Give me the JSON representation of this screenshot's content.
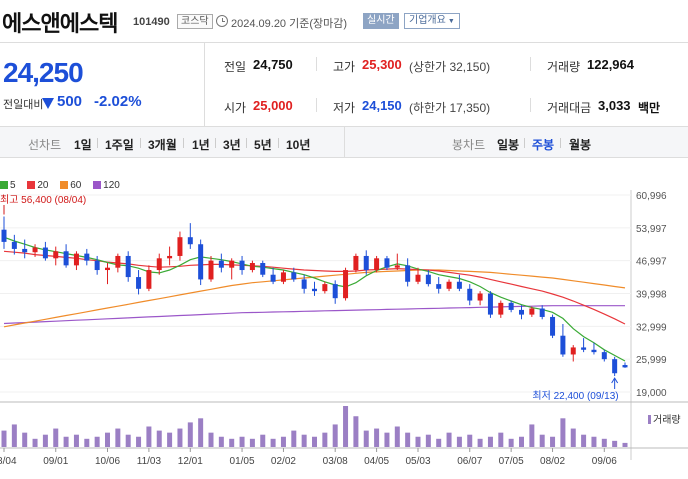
{
  "header": {
    "name": "에스앤에스텍",
    "code": "101490",
    "market": "코스닥",
    "ref_time": "2024.09.20 기준(장마감)",
    "realtime_label": "실시간",
    "company_info_label": "기업개요"
  },
  "quote": {
    "current_price": "24,250",
    "change_label": "전일대비",
    "change_value": "500",
    "change_pct": "-2.02%",
    "prev_close_label": "전일",
    "prev_close": "24,750",
    "high_label": "고가",
    "high": "25,300",
    "upper_limit": "(상한가 32,150)",
    "volume_label": "거래량",
    "volume": "122,964",
    "open_label": "시가",
    "open": "25,000",
    "low_label": "저가",
    "low": "24,150",
    "lower_limit": "(하한가 17,350)",
    "amount_label": "거래대금",
    "amount": "3,033",
    "amount_unit": "백만"
  },
  "period_bar": {
    "line_title": "선차트",
    "line_periods": [
      "1일",
      "1주일",
      "3개월",
      "1년",
      "3년",
      "5년",
      "10년"
    ],
    "candle_title": "봉차트",
    "candle_periods": [
      "일봉",
      "주봉",
      "월봉"
    ],
    "active_candle": "주봉"
  },
  "legend": [
    {
      "label": "5",
      "color": "#3aaa35"
    },
    {
      "label": "20",
      "color": "#e8363b"
    },
    {
      "label": "60",
      "color": "#f08c2a"
    },
    {
      "label": "120",
      "color": "#9b57c9"
    }
  ],
  "volume_label": "거래량",
  "colors": {
    "up": "#e02020",
    "down": "#1d4fd8",
    "volume": "#9b7fc4"
  },
  "chart_data": {
    "type": "candlestick",
    "y_ticks": [
      "60,996",
      "53,997",
      "46,997",
      "39,998",
      "32,999",
      "25,999",
      "19,000"
    ],
    "ylim": [
      19000,
      60996
    ],
    "x_labels": [
      "08/04",
      "09/01",
      "10/06",
      "11/03",
      "12/01",
      "01/05",
      "02/02",
      "03/08",
      "04/05",
      "05/03",
      "06/07",
      "07/05",
      "08/02",
      "09/06"
    ],
    "x_label_index": [
      0,
      5,
      10,
      14,
      18,
      23,
      27,
      32,
      36,
      40,
      45,
      49,
      53,
      58
    ],
    "max_annotation": {
      "text": "최고 56,400 (08/04)",
      "index": 0,
      "value": 56400
    },
    "min_annotation": {
      "text": "최저 22,400 (09/13)",
      "index": 59,
      "value": 22400
    },
    "candles": [
      [
        53600,
        56400,
        49500,
        51000
      ],
      [
        51000,
        52500,
        48300,
        49500
      ],
      [
        49500,
        51500,
        47500,
        48800
      ],
      [
        48800,
        50500,
        47800,
        49800
      ],
      [
        49800,
        51000,
        47000,
        47500
      ],
      [
        47500,
        50000,
        46000,
        49000
      ],
      [
        49000,
        50500,
        45500,
        46000
      ],
      [
        46000,
        49000,
        45000,
        48500
      ],
      [
        48500,
        49500,
        46000,
        47000
      ],
      [
        47000,
        48000,
        44000,
        45000
      ],
      [
        45000,
        46500,
        42000,
        45500
      ],
      [
        45500,
        48500,
        44500,
        48000
      ],
      [
        48000,
        49000,
        42500,
        43500
      ],
      [
        43500,
        45000,
        39800,
        41000
      ],
      [
        41000,
        46000,
        40500,
        45000
      ],
      [
        45000,
        48500,
        44000,
        47500
      ],
      [
        47500,
        50000,
        46000,
        48000
      ],
      [
        48000,
        53200,
        47000,
        52000
      ],
      [
        52000,
        55000,
        49500,
        50500
      ],
      [
        50500,
        51500,
        41800,
        43000
      ],
      [
        43000,
        48000,
        42500,
        47000
      ],
      [
        47000,
        48500,
        44500,
        45500
      ],
      [
        45500,
        47500,
        43000,
        47000
      ],
      [
        47000,
        48000,
        44000,
        45000
      ],
      [
        45000,
        47000,
        44500,
        46500
      ],
      [
        46500,
        47000,
        43500,
        44000
      ],
      [
        44000,
        45500,
        42000,
        42500
      ],
      [
        42500,
        45000,
        42000,
        44500
      ],
      [
        44500,
        45500,
        42500,
        43000
      ],
      [
        43000,
        44000,
        40000,
        41000
      ],
      [
        41000,
        42500,
        39500,
        40500
      ],
      [
        40500,
        42500,
        40000,
        42000
      ],
      [
        42000,
        42800,
        37800,
        39000
      ],
      [
        39000,
        45500,
        38500,
        45000
      ],
      [
        45000,
        48500,
        44500,
        48000
      ],
      [
        48000,
        49200,
        44000,
        45000
      ],
      [
        45000,
        48000,
        44500,
        47500
      ],
      [
        47500,
        48000,
        45000,
        45500
      ],
      [
        45500,
        48500,
        45000,
        46000
      ],
      [
        46000,
        47500,
        41500,
        42500
      ],
      [
        42500,
        45500,
        42000,
        44000
      ],
      [
        44000,
        45000,
        41500,
        42000
      ],
      [
        42000,
        43500,
        40000,
        41000
      ],
      [
        41000,
        43000,
        40500,
        42500
      ],
      [
        42500,
        44000,
        40500,
        41000
      ],
      [
        41000,
        42000,
        37500,
        38500
      ],
      [
        38500,
        40500,
        37500,
        40000
      ],
      [
        40000,
        40500,
        34800,
        35500
      ],
      [
        35500,
        38500,
        34800,
        38000
      ],
      [
        38000,
        38500,
        36000,
        36500
      ],
      [
        36500,
        37500,
        34500,
        35500
      ],
      [
        35500,
        37200,
        35000,
        36800
      ],
      [
        36800,
        37500,
        34500,
        35000
      ],
      [
        35000,
        35500,
        30500,
        31000
      ],
      [
        31000,
        33500,
        26500,
        27000
      ],
      [
        27000,
        29000,
        25500,
        28500
      ],
      [
        28500,
        30500,
        27500,
        28000
      ],
      [
        28000,
        29500,
        27000,
        27500
      ],
      [
        27500,
        28000,
        25500,
        26000
      ],
      [
        26000,
        26500,
        22400,
        23000
      ],
      [
        24750,
        25300,
        24150,
        24250
      ]
    ],
    "ma5": [
      52000,
      51200,
      50500,
      49800,
      49300,
      48900,
      48500,
      48100,
      47700,
      47200,
      46600,
      46100,
      45900,
      45400,
      44600,
      44400,
      45000,
      46000,
      47200,
      47800,
      47500,
      47200,
      46800,
      46300,
      45800,
      45600,
      45300,
      45000,
      44500,
      44000,
      43300,
      42500,
      41800,
      41400,
      42300,
      43800,
      44900,
      45700,
      46300,
      45900,
      45200,
      44700,
      44000,
      43600,
      43200,
      42500,
      41500,
      40200,
      39200,
      38400,
      37600,
      37000,
      36600,
      36000,
      34700,
      32500,
      30800,
      29500,
      28000,
      26800,
      25600
    ],
    "ma20": [
      49000,
      48800,
      48600,
      48300,
      48100,
      47900,
      47700,
      47500,
      47200,
      47000,
      46700,
      46500,
      46300,
      46000,
      45800,
      45600,
      45700,
      45800,
      46000,
      46100,
      46200,
      46200,
      46100,
      46000,
      45900,
      45800,
      45600,
      45400,
      45200,
      45000,
      44900,
      44800,
      44700,
      44700,
      44800,
      45000,
      45100,
      45200,
      45300,
      45200,
      45100,
      45000,
      44800,
      44500,
      44200,
      43900,
      43500,
      43000,
      42500,
      42000,
      41500,
      41000,
      40500,
      39900,
      39200,
      38400,
      37500,
      36600,
      35600,
      34600,
      33500
    ],
    "ma60": [
      32900,
      33300,
      33700,
      34100,
      34500,
      34900,
      35300,
      35700,
      36100,
      36500,
      36900,
      37300,
      37700,
      38100,
      38500,
      38900,
      39300,
      39700,
      40100,
      40500,
      40900,
      41300,
      41700,
      42000,
      42300,
      42500,
      42700,
      42900,
      43100,
      43300,
      43500,
      43700,
      43900,
      44100,
      44300,
      44500,
      44600,
      44700,
      44800,
      44900,
      45000,
      45000,
      45000,
      44900,
      44800,
      44700,
      44600,
      44500,
      44300,
      44100,
      43900,
      43700,
      43500,
      43300,
      43000,
      42700,
      42400,
      42100,
      41800,
      41500,
      41200
    ],
    "ma120": [
      33600,
      33700,
      33800,
      33900,
      34000,
      34100,
      34200,
      34300,
      34400,
      34500,
      34600,
      34700,
      34800,
      34900,
      35000,
      35100,
      35200,
      35300,
      35400,
      35500,
      35600,
      35700,
      35800,
      35900,
      35950,
      36000,
      36050,
      36100,
      36150,
      36200,
      36250,
      36300,
      36350,
      36400,
      36450,
      36500,
      36550,
      36600,
      36650,
      36700,
      36750,
      36800,
      36850,
      36900,
      36950,
      37000,
      37050,
      37100,
      37150,
      37200,
      37250,
      37300,
      37350,
      37400,
      37400,
      37400,
      37400,
      37400,
      37400,
      37400,
      37400
    ],
    "volumes": [
      40,
      55,
      35,
      20,
      30,
      45,
      25,
      30,
      20,
      25,
      35,
      45,
      30,
      25,
      50,
      40,
      35,
      45,
      60,
      70,
      35,
      25,
      20,
      25,
      20,
      30,
      20,
      25,
      40,
      30,
      25,
      35,
      55,
      100,
      75,
      40,
      45,
      35,
      50,
      35,
      25,
      30,
      20,
      35,
      25,
      30,
      20,
      25,
      35,
      20,
      25,
      55,
      30,
      25,
      70,
      45,
      30,
      25,
      20,
      15,
      10
    ]
  }
}
